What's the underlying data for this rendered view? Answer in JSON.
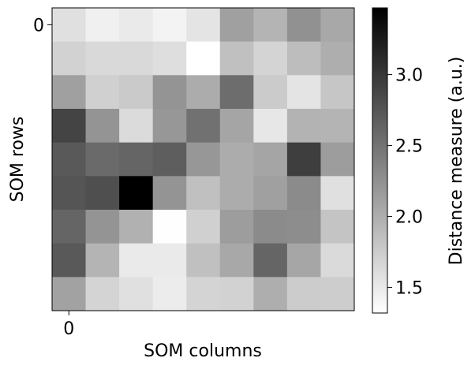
{
  "chart_data": {
    "type": "heatmap",
    "title": "",
    "xlabel": "SOM columns",
    "ylabel": "SOM rows",
    "x_ticks": [
      {
        "index": 0,
        "label": "0"
      }
    ],
    "y_ticks": [
      {
        "index": 0,
        "label": "0"
      }
    ],
    "colormap": "gray_r",
    "colorbar": {
      "label": "Distance measure (a.u.)",
      "vmin": 1.32,
      "vmax": 3.47,
      "ticks": [
        1.5,
        2.0,
        2.5,
        3.0
      ],
      "tick_labels": [
        "1.5",
        "2.0",
        "2.5",
        "3.0"
      ]
    },
    "rows": 9,
    "cols": 9,
    "values": [
      [
        1.58,
        1.45,
        1.5,
        1.42,
        1.55,
        2.12,
        1.95,
        2.25,
        2.05
      ],
      [
        1.7,
        1.64,
        1.64,
        1.6,
        1.32,
        1.85,
        1.68,
        1.88,
        2.0
      ],
      [
        2.12,
        1.72,
        1.77,
        2.22,
        2.02,
        2.55,
        1.76,
        1.55,
        1.8
      ],
      [
        2.9,
        2.22,
        1.62,
        2.2,
        2.52,
        2.08,
        1.52,
        1.96,
        1.95
      ],
      [
        2.72,
        2.58,
        2.62,
        2.68,
        2.2,
        2.02,
        2.08,
        2.95,
        2.15
      ],
      [
        2.75,
        2.8,
        3.47,
        2.22,
        1.85,
        2.02,
        2.12,
        2.3,
        1.58
      ],
      [
        2.62,
        2.22,
        1.98,
        1.33,
        1.72,
        2.15,
        2.3,
        2.28,
        1.82
      ],
      [
        2.72,
        1.95,
        1.5,
        1.5,
        1.85,
        2.05,
        2.62,
        2.07,
        1.63
      ],
      [
        2.1,
        1.68,
        1.58,
        1.48,
        1.68,
        1.7,
        2.0,
        1.75,
        1.74
      ]
    ]
  }
}
